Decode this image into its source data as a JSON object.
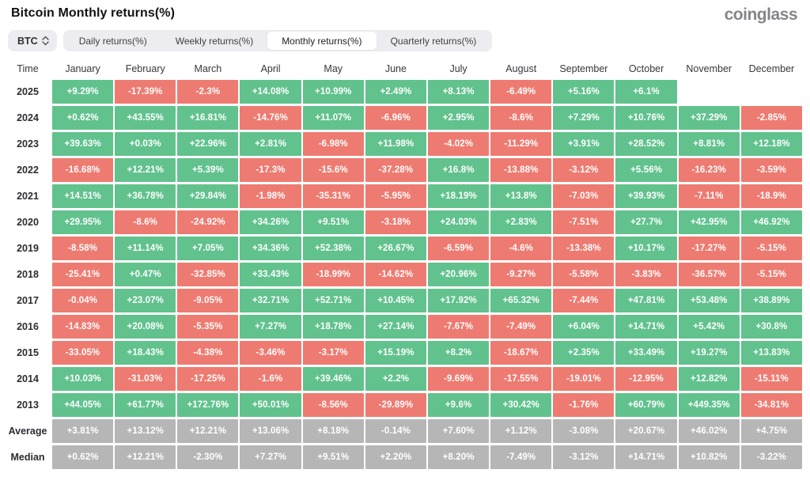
{
  "page": {
    "title": "Bitcoin Monthly returns(%)",
    "logo": "coinglass"
  },
  "controls": {
    "coin_select": {
      "value": "BTC"
    },
    "tabs": [
      {
        "id": "daily",
        "label": "Daily returns(%)",
        "active": false
      },
      {
        "id": "weekly",
        "label": "Weekly returns(%)",
        "active": false
      },
      {
        "id": "monthly",
        "label": "Monthly returns(%)",
        "active": true
      },
      {
        "id": "quarterly",
        "label": "Quarterly returns(%)",
        "active": false
      }
    ]
  },
  "chart_data": {
    "type": "heatmap",
    "title": "Bitcoin Monthly returns(%)",
    "columns": [
      "Time",
      "January",
      "February",
      "March",
      "April",
      "May",
      "June",
      "July",
      "August",
      "September",
      "October",
      "November",
      "December"
    ],
    "rows": [
      {
        "label": "2025",
        "neutral": false,
        "values": [
          "+9.29%",
          "-17.39%",
          "-2.3%",
          "+14.08%",
          "+10.99%",
          "+2.49%",
          "+8.13%",
          "-6.49%",
          "+5.16%",
          "+6.1%",
          "",
          ""
        ]
      },
      {
        "label": "2024",
        "neutral": false,
        "values": [
          "+0.62%",
          "+43.55%",
          "+16.81%",
          "-14.76%",
          "+11.07%",
          "-6.96%",
          "+2.95%",
          "-8.6%",
          "+7.29%",
          "+10.76%",
          "+37.29%",
          "-2.85%"
        ]
      },
      {
        "label": "2023",
        "neutral": false,
        "values": [
          "+39.63%",
          "+0.03%",
          "+22.96%",
          "+2.81%",
          "-6.98%",
          "+11.98%",
          "-4.02%",
          "-11.29%",
          "+3.91%",
          "+28.52%",
          "+8.81%",
          "+12.18%"
        ]
      },
      {
        "label": "2022",
        "neutral": false,
        "values": [
          "-16.68%",
          "+12.21%",
          "+5.39%",
          "-17.3%",
          "-15.6%",
          "-37.28%",
          "+16.8%",
          "-13.88%",
          "-3.12%",
          "+5.56%",
          "-16.23%",
          "-3.59%"
        ]
      },
      {
        "label": "2021",
        "neutral": false,
        "values": [
          "+14.51%",
          "+36.78%",
          "+29.84%",
          "-1.98%",
          "-35.31%",
          "-5.95%",
          "+18.19%",
          "+13.8%",
          "-7.03%",
          "+39.93%",
          "-7.11%",
          "-18.9%"
        ]
      },
      {
        "label": "2020",
        "neutral": false,
        "values": [
          "+29.95%",
          "-8.6%",
          "-24.92%",
          "+34.26%",
          "+9.51%",
          "-3.18%",
          "+24.03%",
          "+2.83%",
          "-7.51%",
          "+27.7%",
          "+42.95%",
          "+46.92%"
        ]
      },
      {
        "label": "2019",
        "neutral": false,
        "values": [
          "-8.58%",
          "+11.14%",
          "+7.05%",
          "+34.36%",
          "+52.38%",
          "+26.67%",
          "-6.59%",
          "-4.6%",
          "-13.38%",
          "+10.17%",
          "-17.27%",
          "-5.15%"
        ]
      },
      {
        "label": "2018",
        "neutral": false,
        "values": [
          "-25.41%",
          "+0.47%",
          "-32.85%",
          "+33.43%",
          "-18.99%",
          "-14.62%",
          "+20.96%",
          "-9.27%",
          "-5.58%",
          "-3.83%",
          "-36.57%",
          "-5.15%"
        ]
      },
      {
        "label": "2017",
        "neutral": false,
        "values": [
          "-0.04%",
          "+23.07%",
          "-9.05%",
          "+32.71%",
          "+52.71%",
          "+10.45%",
          "+17.92%",
          "+65.32%",
          "-7.44%",
          "+47.81%",
          "+53.48%",
          "+38.89%"
        ]
      },
      {
        "label": "2016",
        "neutral": false,
        "values": [
          "-14.83%",
          "+20.08%",
          "-5.35%",
          "+7.27%",
          "+18.78%",
          "+27.14%",
          "-7.67%",
          "-7.49%",
          "+6.04%",
          "+14.71%",
          "+5.42%",
          "+30.8%"
        ]
      },
      {
        "label": "2015",
        "neutral": false,
        "values": [
          "-33.05%",
          "+18.43%",
          "-4.38%",
          "-3.46%",
          "-3.17%",
          "+15.19%",
          "+8.2%",
          "-18.67%",
          "+2.35%",
          "+33.49%",
          "+19.27%",
          "+13.83%"
        ]
      },
      {
        "label": "2014",
        "neutral": false,
        "values": [
          "+10.03%",
          "-31.03%",
          "-17.25%",
          "-1.6%",
          "+39.46%",
          "+2.2%",
          "-9.69%",
          "-17.55%",
          "-19.01%",
          "-12.95%",
          "+12.82%",
          "-15.11%"
        ]
      },
      {
        "label": "2013",
        "neutral": false,
        "values": [
          "+44.05%",
          "+61.77%",
          "+172.76%",
          "+50.01%",
          "-8.56%",
          "-29.89%",
          "+9.6%",
          "+30.42%",
          "-1.76%",
          "+60.79%",
          "+449.35%",
          "-34.81%"
        ]
      },
      {
        "label": "Average",
        "neutral": true,
        "values": [
          "+3.81%",
          "+13.12%",
          "+12.21%",
          "+13.06%",
          "+8.18%",
          "-0.14%",
          "+7.60%",
          "+1.12%",
          "-3.08%",
          "+20.67%",
          "+46.02%",
          "+4.75%"
        ]
      },
      {
        "label": "Median",
        "neutral": true,
        "values": [
          "+0.62%",
          "+12.21%",
          "-2.30%",
          "+7.27%",
          "+9.51%",
          "+2.20%",
          "+8.20%",
          "-7.49%",
          "-3.12%",
          "+14.71%",
          "+10.82%",
          "-3.22%"
        ]
      }
    ],
    "colors": {
      "positive": "#61c28e",
      "negative": "#ee7b71",
      "neutral": "#b6b6b6",
      "cell_text": "#ffffff"
    },
    "legend_position": "none",
    "grid": false
  }
}
